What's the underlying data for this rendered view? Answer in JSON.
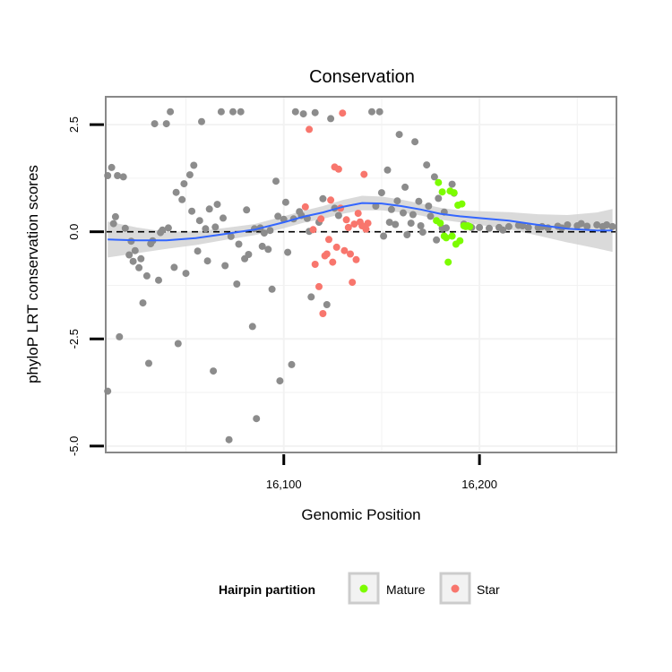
{
  "chart_data": {
    "type": "scatter",
    "title": "Conservation",
    "xlabel": "Genomic Position",
    "ylabel": "phyloP LRT conservation scores",
    "xlim": [
      16009,
      16270
    ],
    "ylim": [
      -5.15,
      3.15
    ],
    "x_ticks": [
      16100,
      16200
    ],
    "x_tick_labels": [
      "16,100",
      "16,200"
    ],
    "y_ticks": [
      -5.0,
      -2.5,
      0.0,
      2.5
    ],
    "y_tick_labels": [
      "-5.0",
      "-2.5",
      "0.0",
      "2.5"
    ],
    "grid": true,
    "reference_line": {
      "y": 0,
      "style": "dashed"
    },
    "legend": {
      "title": "Hairpin partition",
      "position": "bottom",
      "entries": [
        {
          "label": "Mature",
          "color": "#7cfc00"
        },
        {
          "label": "Star",
          "color": "#f8766d"
        }
      ]
    },
    "colors": {
      "other": "#8c8c8c",
      "mature": "#7cfc00",
      "star": "#f8766d",
      "smooth": "#3366ff",
      "band": "#d3d3d3"
    },
    "series": [
      {
        "group": "other",
        "points": [
          [
            16010,
            1.31
          ],
          [
            16012,
            1.5
          ],
          [
            16014,
            0.35
          ],
          [
            16015,
            1.31
          ],
          [
            16018,
            1.28
          ],
          [
            16021,
            -0.54
          ],
          [
            16022,
            -0.22
          ],
          [
            16024,
            -0.44
          ],
          [
            16026,
            -0.84
          ],
          [
            16028,
            -1.66
          ],
          [
            16030,
            -1.03
          ],
          [
            16032,
            -0.28
          ],
          [
            16034,
            2.52
          ],
          [
            16036,
            -1.13
          ],
          [
            16038,
            0.04
          ],
          [
            16040,
            2.52
          ],
          [
            16042,
            2.8
          ],
          [
            16044,
            -0.83
          ],
          [
            16046,
            -2.61
          ],
          [
            16048,
            0.75
          ],
          [
            16050,
            -0.97
          ],
          [
            16052,
            1.33
          ],
          [
            16054,
            1.55
          ],
          [
            16056,
            -0.45
          ],
          [
            16058,
            2.57
          ],
          [
            16060,
            0.07
          ],
          [
            16062,
            0.53
          ],
          [
            16064,
            -3.25
          ],
          [
            16066,
            0.64
          ],
          [
            16068,
            2.8
          ],
          [
            16070,
            -0.79
          ],
          [
            16072,
            -4.85
          ],
          [
            16074,
            2.8
          ],
          [
            16076,
            -1.22
          ],
          [
            16078,
            2.8
          ],
          [
            16080,
            -0.63
          ],
          [
            16082,
            -0.53
          ],
          [
            16084,
            -2.21
          ],
          [
            16086,
            -4.36
          ],
          [
            16088,
            0.09
          ],
          [
            16090,
            -0.03
          ],
          [
            16092,
            -0.41
          ],
          [
            16094,
            -1.34
          ],
          [
            16096,
            1.18
          ],
          [
            16098,
            -3.48
          ],
          [
            16100,
            0.29
          ],
          [
            16102,
            -0.48
          ],
          [
            16104,
            -3.1
          ],
          [
            16106,
            2.8
          ],
          [
            16108,
            0.47
          ],
          [
            16110,
            2.75
          ],
          [
            16112,
            0.31
          ],
          [
            16114,
            -1.52
          ],
          [
            16116,
            2.78
          ],
          [
            16118,
            0.22
          ],
          [
            16120,
            0.77
          ],
          [
            16122,
            -1.7
          ],
          [
            16124,
            2.64
          ],
          [
            16126,
            0.55
          ],
          [
            16128,
            0.38
          ],
          [
            16145,
            2.8
          ],
          [
            16147,
            0.6
          ],
          [
            16149,
            2.8
          ],
          [
            16151,
            -0.1
          ],
          [
            16153,
            1.44
          ],
          [
            16155,
            0.52
          ],
          [
            16157,
            0.17
          ],
          [
            16159,
            2.27
          ],
          [
            16161,
            0.44
          ],
          [
            16163,
            -0.07
          ],
          [
            16165,
            0.2
          ],
          [
            16167,
            2.1
          ],
          [
            16169,
            0.71
          ],
          [
            16171,
            -0.01
          ],
          [
            16173,
            1.56
          ],
          [
            16175,
            0.36
          ],
          [
            16177,
            1.28
          ],
          [
            16179,
            0.78
          ],
          [
            16181,
            0.08
          ],
          [
            16183,
            0.09
          ],
          [
            16186,
            1.11
          ],
          [
            16010,
            -3.72
          ],
          [
            16013,
            0.19
          ],
          [
            16016,
            -2.45
          ],
          [
            16019,
            0.08
          ],
          [
            16023,
            -0.69
          ],
          [
            16027,
            -0.63
          ],
          [
            16031,
            -3.07
          ],
          [
            16033,
            -0.21
          ],
          [
            16037,
            -0.02
          ],
          [
            16041,
            0.09
          ],
          [
            16045,
            0.92
          ],
          [
            16049,
            1.12
          ],
          [
            16053,
            0.48
          ],
          [
            16057,
            0.26
          ],
          [
            16061,
            -0.68
          ],
          [
            16065,
            0.11
          ],
          [
            16069,
            0.32
          ],
          [
            16073,
            -0.11
          ],
          [
            16077,
            -0.29
          ],
          [
            16081,
            0.51
          ],
          [
            16085,
            0.07
          ],
          [
            16089,
            -0.34
          ],
          [
            16093,
            0.03
          ],
          [
            16097,
            0.36
          ],
          [
            16101,
            0.69
          ],
          [
            16105,
            0.3
          ],
          [
            16109,
            0.38
          ],
          [
            16113,
            0.01
          ],
          [
            16150,
            0.91
          ],
          [
            16154,
            0.22
          ],
          [
            16158,
            0.72
          ],
          [
            16162,
            1.04
          ],
          [
            16166,
            0.4
          ],
          [
            16170,
            0.14
          ],
          [
            16174,
            0.6
          ],
          [
            16178,
            -0.19
          ],
          [
            16182,
            0.46
          ],
          [
            16187,
            0.9
          ],
          [
            16192,
            0.18
          ],
          [
            16196,
            0.1
          ],
          [
            16200,
            0.1
          ],
          [
            16205,
            0.08
          ],
          [
            16210,
            0.1
          ],
          [
            16215,
            0.12
          ],
          [
            16220,
            0.15
          ],
          [
            16225,
            0.1
          ],
          [
            16230,
            0.1
          ],
          [
            16235,
            0.09
          ],
          [
            16240,
            0.13
          ],
          [
            16245,
            0.16
          ],
          [
            16250,
            0.14
          ],
          [
            16255,
            0.13
          ],
          [
            16260,
            0.16
          ],
          [
            16263,
            0.12
          ],
          [
            16265,
            0.16
          ],
          [
            16268,
            0.12
          ],
          [
            16212,
            0.04
          ],
          [
            16222,
            0.14
          ],
          [
            16232,
            0.12
          ],
          [
            16242,
            0.09
          ],
          [
            16252,
            0.19
          ]
        ]
      },
      {
        "group": "mature",
        "points": [
          [
            16178,
            0.26
          ],
          [
            16179,
            1.15
          ],
          [
            16181,
            0.93
          ],
          [
            16182,
            -0.1
          ],
          [
            16183,
            -0.14
          ],
          [
            16184,
            -0.71
          ],
          [
            16185,
            0.95
          ],
          [
            16186,
            -0.1
          ],
          [
            16187,
            0.91
          ],
          [
            16188,
            -0.29
          ],
          [
            16189,
            0.62
          ],
          [
            16190,
            -0.21
          ],
          [
            16191,
            0.65
          ],
          [
            16192,
            0.14
          ],
          [
            16193,
            0.12
          ],
          [
            16194,
            0.14
          ],
          [
            16195,
            0.12
          ],
          [
            16180,
            0.2
          ]
        ]
      },
      {
        "group": "star",
        "points": [
          [
            16111,
            0.58
          ],
          [
            16113,
            2.39
          ],
          [
            16115,
            0.05
          ],
          [
            16116,
            -0.76
          ],
          [
            16118,
            -1.28
          ],
          [
            16119,
            0.3
          ],
          [
            16120,
            -1.91
          ],
          [
            16121,
            -0.56
          ],
          [
            16122,
            -0.52
          ],
          [
            16123,
            -0.18
          ],
          [
            16124,
            0.74
          ],
          [
            16125,
            -0.71
          ],
          [
            16126,
            1.51
          ],
          [
            16127,
            -0.36
          ],
          [
            16128,
            1.46
          ],
          [
            16129,
            0.55
          ],
          [
            16130,
            2.77
          ],
          [
            16131,
            -0.44
          ],
          [
            16132,
            0.28
          ],
          [
            16133,
            0.1
          ],
          [
            16134,
            -0.52
          ],
          [
            16135,
            -1.18
          ],
          [
            16136,
            0.18
          ],
          [
            16137,
            -0.65
          ],
          [
            16138,
            0.43
          ],
          [
            16139,
            0.23
          ],
          [
            16140,
            0.14
          ],
          [
            16141,
            1.34
          ],
          [
            16142,
            0.06
          ],
          [
            16143,
            0.2
          ]
        ]
      }
    ],
    "smooth_line": {
      "x": [
        16010,
        16025,
        16040,
        16055,
        16070,
        16085,
        16100,
        16110,
        16120,
        16130,
        16140,
        16150,
        16160,
        16170,
        16180,
        16190,
        16200,
        16215,
        16230,
        16245,
        16260,
        16268
      ],
      "y": [
        -0.18,
        -0.2,
        -0.2,
        -0.15,
        -0.05,
        0.05,
        0.22,
        0.35,
        0.45,
        0.58,
        0.67,
        0.66,
        0.6,
        0.52,
        0.42,
        0.36,
        0.32,
        0.26,
        0.16,
        0.07,
        0.03,
        0.03
      ],
      "band_halfwidth": [
        0.42,
        0.3,
        0.2,
        0.16,
        0.14,
        0.13,
        0.14,
        0.14,
        0.15,
        0.16,
        0.17,
        0.16,
        0.15,
        0.14,
        0.14,
        0.14,
        0.16,
        0.2,
        0.25,
        0.32,
        0.42,
        0.5
      ]
    }
  }
}
